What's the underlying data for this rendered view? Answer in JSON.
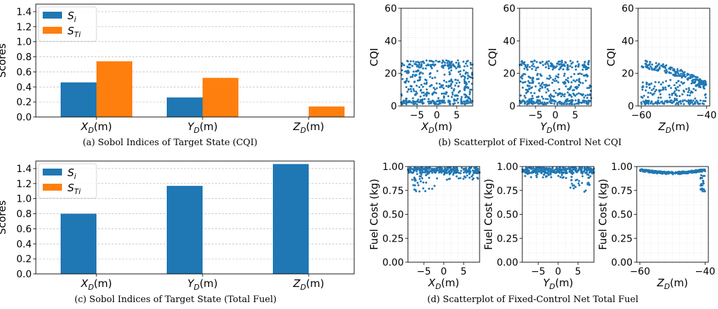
{
  "colors": {
    "si": "#1f77b4",
    "sti": "#ff7f0e",
    "scatter": "#1f77b4",
    "grid": "#b0b0b0"
  },
  "captions": {
    "a": "(a) Sobol Indices of Target State (CQI)",
    "b": "(b) Scatterplot of Fixed-Control Net CQI",
    "c": "(c) Sobol Indices of Target State (Total Fuel)",
    "d": "(d) Scatterplot of Fixed-Control Net Total Fuel"
  },
  "chart_data": [
    {
      "id": "a",
      "type": "bar",
      "ylabel": "Scores",
      "ylim": [
        0,
        1.5
      ],
      "yticks": [
        "0.0",
        "0.2",
        "0.4",
        "0.6",
        "0.8",
        "1.0",
        "1.2",
        "1.4"
      ],
      "categories": [
        {
          "base": "X",
          "sub": "D",
          "unit": "(m)"
        },
        {
          "base": "Y",
          "sub": "D",
          "unit": "(m)"
        },
        {
          "base": "Z",
          "sub": "D",
          "unit": "(m)"
        }
      ],
      "legend": {
        "position": "upper-left",
        "items": [
          {
            "base": "S",
            "sub": "i"
          },
          {
            "base": "S",
            "sub": "Ti"
          }
        ]
      },
      "series": [
        {
          "key": "S_i",
          "values": [
            0.46,
            0.26,
            0.0
          ]
        },
        {
          "key": "S_Ti",
          "values": [
            0.74,
            0.52,
            0.14
          ]
        }
      ]
    },
    {
      "id": "c",
      "type": "bar",
      "ylabel": "Scores",
      "ylim": [
        0,
        1.5
      ],
      "yticks": [
        "0.0",
        "0.2",
        "0.4",
        "0.6",
        "0.8",
        "1.0",
        "1.2",
        "1.4"
      ],
      "categories": [
        {
          "base": "X",
          "sub": "D",
          "unit": "(m)"
        },
        {
          "base": "Y",
          "sub": "D",
          "unit": "(m)"
        },
        {
          "base": "Z",
          "sub": "D",
          "unit": "(m)"
        }
      ],
      "legend": {
        "position": "upper-left",
        "items": [
          {
            "base": "S",
            "sub": "i"
          },
          {
            "base": "S",
            "sub": "Ti"
          }
        ]
      },
      "series": [
        {
          "key": "S_i",
          "values": [
            0.8,
            1.17,
            1.46
          ]
        },
        {
          "key": "S_Ti",
          "values": [
            0.0,
            0.0,
            0.0
          ]
        }
      ]
    },
    {
      "id": "b1",
      "type": "scatter",
      "ylabel": "CQI",
      "xlabel": {
        "base": "X",
        "sub": "D",
        "unit": "(m)"
      },
      "xlim": [
        -9,
        9
      ],
      "ylim": [
        0,
        60
      ],
      "xticks": [
        {
          "v": -5,
          "t": "−5"
        },
        {
          "v": 0,
          "t": "0"
        },
        {
          "v": 5,
          "t": "5"
        }
      ],
      "yticks": [
        {
          "v": 0,
          "t": "0"
        },
        {
          "v": 20,
          "t": "20"
        },
        {
          "v": 40,
          "t": "40"
        },
        {
          "v": 60,
          "t": "60"
        }
      ],
      "bands": [
        {
          "x": [
            -9,
            9
          ],
          "y": [
            23,
            28
          ],
          "n": 110
        },
        {
          "x": [
            -9,
            -3
          ],
          "y": [
            14,
            22
          ],
          "n": 40
        },
        {
          "x": [
            3,
            9
          ],
          "y": [
            14,
            22
          ],
          "n": 40
        },
        {
          "x": [
            -3,
            3
          ],
          "y": [
            14,
            22
          ],
          "n": 12
        },
        {
          "x": [
            -9,
            9
          ],
          "y": [
            3,
            14
          ],
          "n": 140
        },
        {
          "x": [
            -9,
            9
          ],
          "y": [
            1,
            3.5
          ],
          "n": 110
        }
      ]
    },
    {
      "id": "b2",
      "type": "scatter",
      "ylabel": "CQI",
      "xlabel": {
        "base": "Y",
        "sub": "D",
        "unit": "(m)"
      },
      "xlim": [
        -9,
        9
      ],
      "ylim": [
        0,
        60
      ],
      "xticks": [
        {
          "v": -5,
          "t": "−5"
        },
        {
          "v": 0,
          "t": "0"
        },
        {
          "v": 5,
          "t": "5"
        }
      ],
      "yticks": [
        {
          "v": 0,
          "t": "0"
        },
        {
          "v": 20,
          "t": "20"
        },
        {
          "v": 40,
          "t": "40"
        },
        {
          "v": 60,
          "t": "60"
        }
      ],
      "bands": [
        {
          "x": [
            -9,
            9
          ],
          "y": [
            22,
            28
          ],
          "n": 120
        },
        {
          "x": [
            -9,
            9
          ],
          "y": [
            14,
            20
          ],
          "n": 80
        },
        {
          "x": [
            -9,
            9
          ],
          "y": [
            3,
            14
          ],
          "n": 130
        },
        {
          "x": [
            -9,
            9
          ],
          "y": [
            1,
            3.5
          ],
          "n": 110
        }
      ]
    },
    {
      "id": "b3",
      "type": "scatter",
      "ylabel": "CQI",
      "xlabel": {
        "base": "Z",
        "sub": "D",
        "unit": "(m)"
      },
      "xlim": [
        -61,
        -39
      ],
      "ylim": [
        0,
        60
      ],
      "xticks": [
        {
          "v": -60,
          "t": "−60"
        },
        {
          "v": -40,
          "t": "−40"
        }
      ],
      "yticks": [
        {
          "v": 0,
          "t": "0"
        },
        {
          "v": 20,
          "t": "20"
        },
        {
          "v": 40,
          "t": "40"
        },
        {
          "v": 60,
          "t": "60"
        }
      ],
      "curve": {
        "x": [
          -60,
          -40
        ],
        "top": [
          28,
          15
        ],
        "n": 170
      },
      "bands": [
        {
          "x": [
            -60,
            -40
          ],
          "y": [
            4,
            16
          ],
          "n": 110
        },
        {
          "x": [
            -60,
            -40
          ],
          "y": [
            1,
            3.5
          ],
          "n": 100
        }
      ]
    },
    {
      "id": "d1",
      "type": "scatter",
      "ylabel": "Fuel Cost (kg)",
      "xlabel": {
        "base": "X",
        "sub": "D",
        "unit": "(m)"
      },
      "xlim": [
        -9,
        9
      ],
      "ylim": [
        0,
        1.0
      ],
      "xticks": [
        {
          "v": -5,
          "t": "−5"
        },
        {
          "v": 0,
          "t": "0"
        },
        {
          "v": 5,
          "t": "5"
        }
      ],
      "yticks": [
        {
          "v": 0,
          "t": "0.00"
        },
        {
          "v": 0.25,
          "t": "0.25"
        },
        {
          "v": 0.5,
          "t": "0.50"
        },
        {
          "v": 0.75,
          "t": "0.75"
        },
        {
          "v": 1.0,
          "t": "1.00"
        }
      ],
      "bands": [
        {
          "x": [
            -9,
            9
          ],
          "y": [
            0.93,
            0.99
          ],
          "n": 260
        },
        {
          "x": [
            -9,
            9
          ],
          "y": [
            0.86,
            0.93
          ],
          "n": 40
        },
        {
          "x": [
            -8,
            -2
          ],
          "y": [
            0.72,
            0.86
          ],
          "n": 18
        }
      ]
    },
    {
      "id": "d2",
      "type": "scatter",
      "ylabel": "Fuel Cost (kg)",
      "xlabel": {
        "base": "Y",
        "sub": "D",
        "unit": "(m)"
      },
      "xlim": [
        -9,
        9
      ],
      "ylim": [
        0,
        1.0
      ],
      "xticks": [
        {
          "v": -5,
          "t": "−5"
        },
        {
          "v": 0,
          "t": "0"
        },
        {
          "v": 5,
          "t": "5"
        }
      ],
      "yticks": [
        {
          "v": 0,
          "t": "0.00"
        },
        {
          "v": 0.25,
          "t": "0.25"
        },
        {
          "v": 0.5,
          "t": "0.50"
        },
        {
          "v": 0.75,
          "t": "0.75"
        },
        {
          "v": 1.0,
          "t": "1.00"
        }
      ],
      "bands": [
        {
          "x": [
            -9,
            9
          ],
          "y": [
            0.93,
            0.99
          ],
          "n": 260
        },
        {
          "x": [
            -9,
            9
          ],
          "y": [
            0.88,
            0.93
          ],
          "n": 35
        },
        {
          "x": [
            3,
            9
          ],
          "y": [
            0.72,
            0.88
          ],
          "n": 22
        }
      ]
    },
    {
      "id": "d3",
      "type": "scatter",
      "ylabel": "Fuel Cost (kg)",
      "xlabel": {
        "base": "Z",
        "sub": "D",
        "unit": "(m)"
      },
      "xlim": [
        -61,
        -39
      ],
      "ylim": [
        0,
        1.0
      ],
      "xticks": [
        {
          "v": -60,
          "t": "−60"
        },
        {
          "v": -40,
          "t": "−40"
        }
      ],
      "yticks": [
        {
          "v": 0,
          "t": "0.00"
        },
        {
          "v": 0.25,
          "t": "0.25"
        },
        {
          "v": 0.5,
          "t": "0.50"
        },
        {
          "v": 0.75,
          "t": "0.75"
        },
        {
          "v": 1.0,
          "t": "1.00"
        }
      ],
      "fuelcurve": {
        "x": [
          -60,
          -40
        ],
        "n": 260
      },
      "bands": [
        {
          "x": [
            -41.5,
            -40
          ],
          "y": [
            0.72,
            0.92
          ],
          "n": 25
        }
      ]
    }
  ]
}
